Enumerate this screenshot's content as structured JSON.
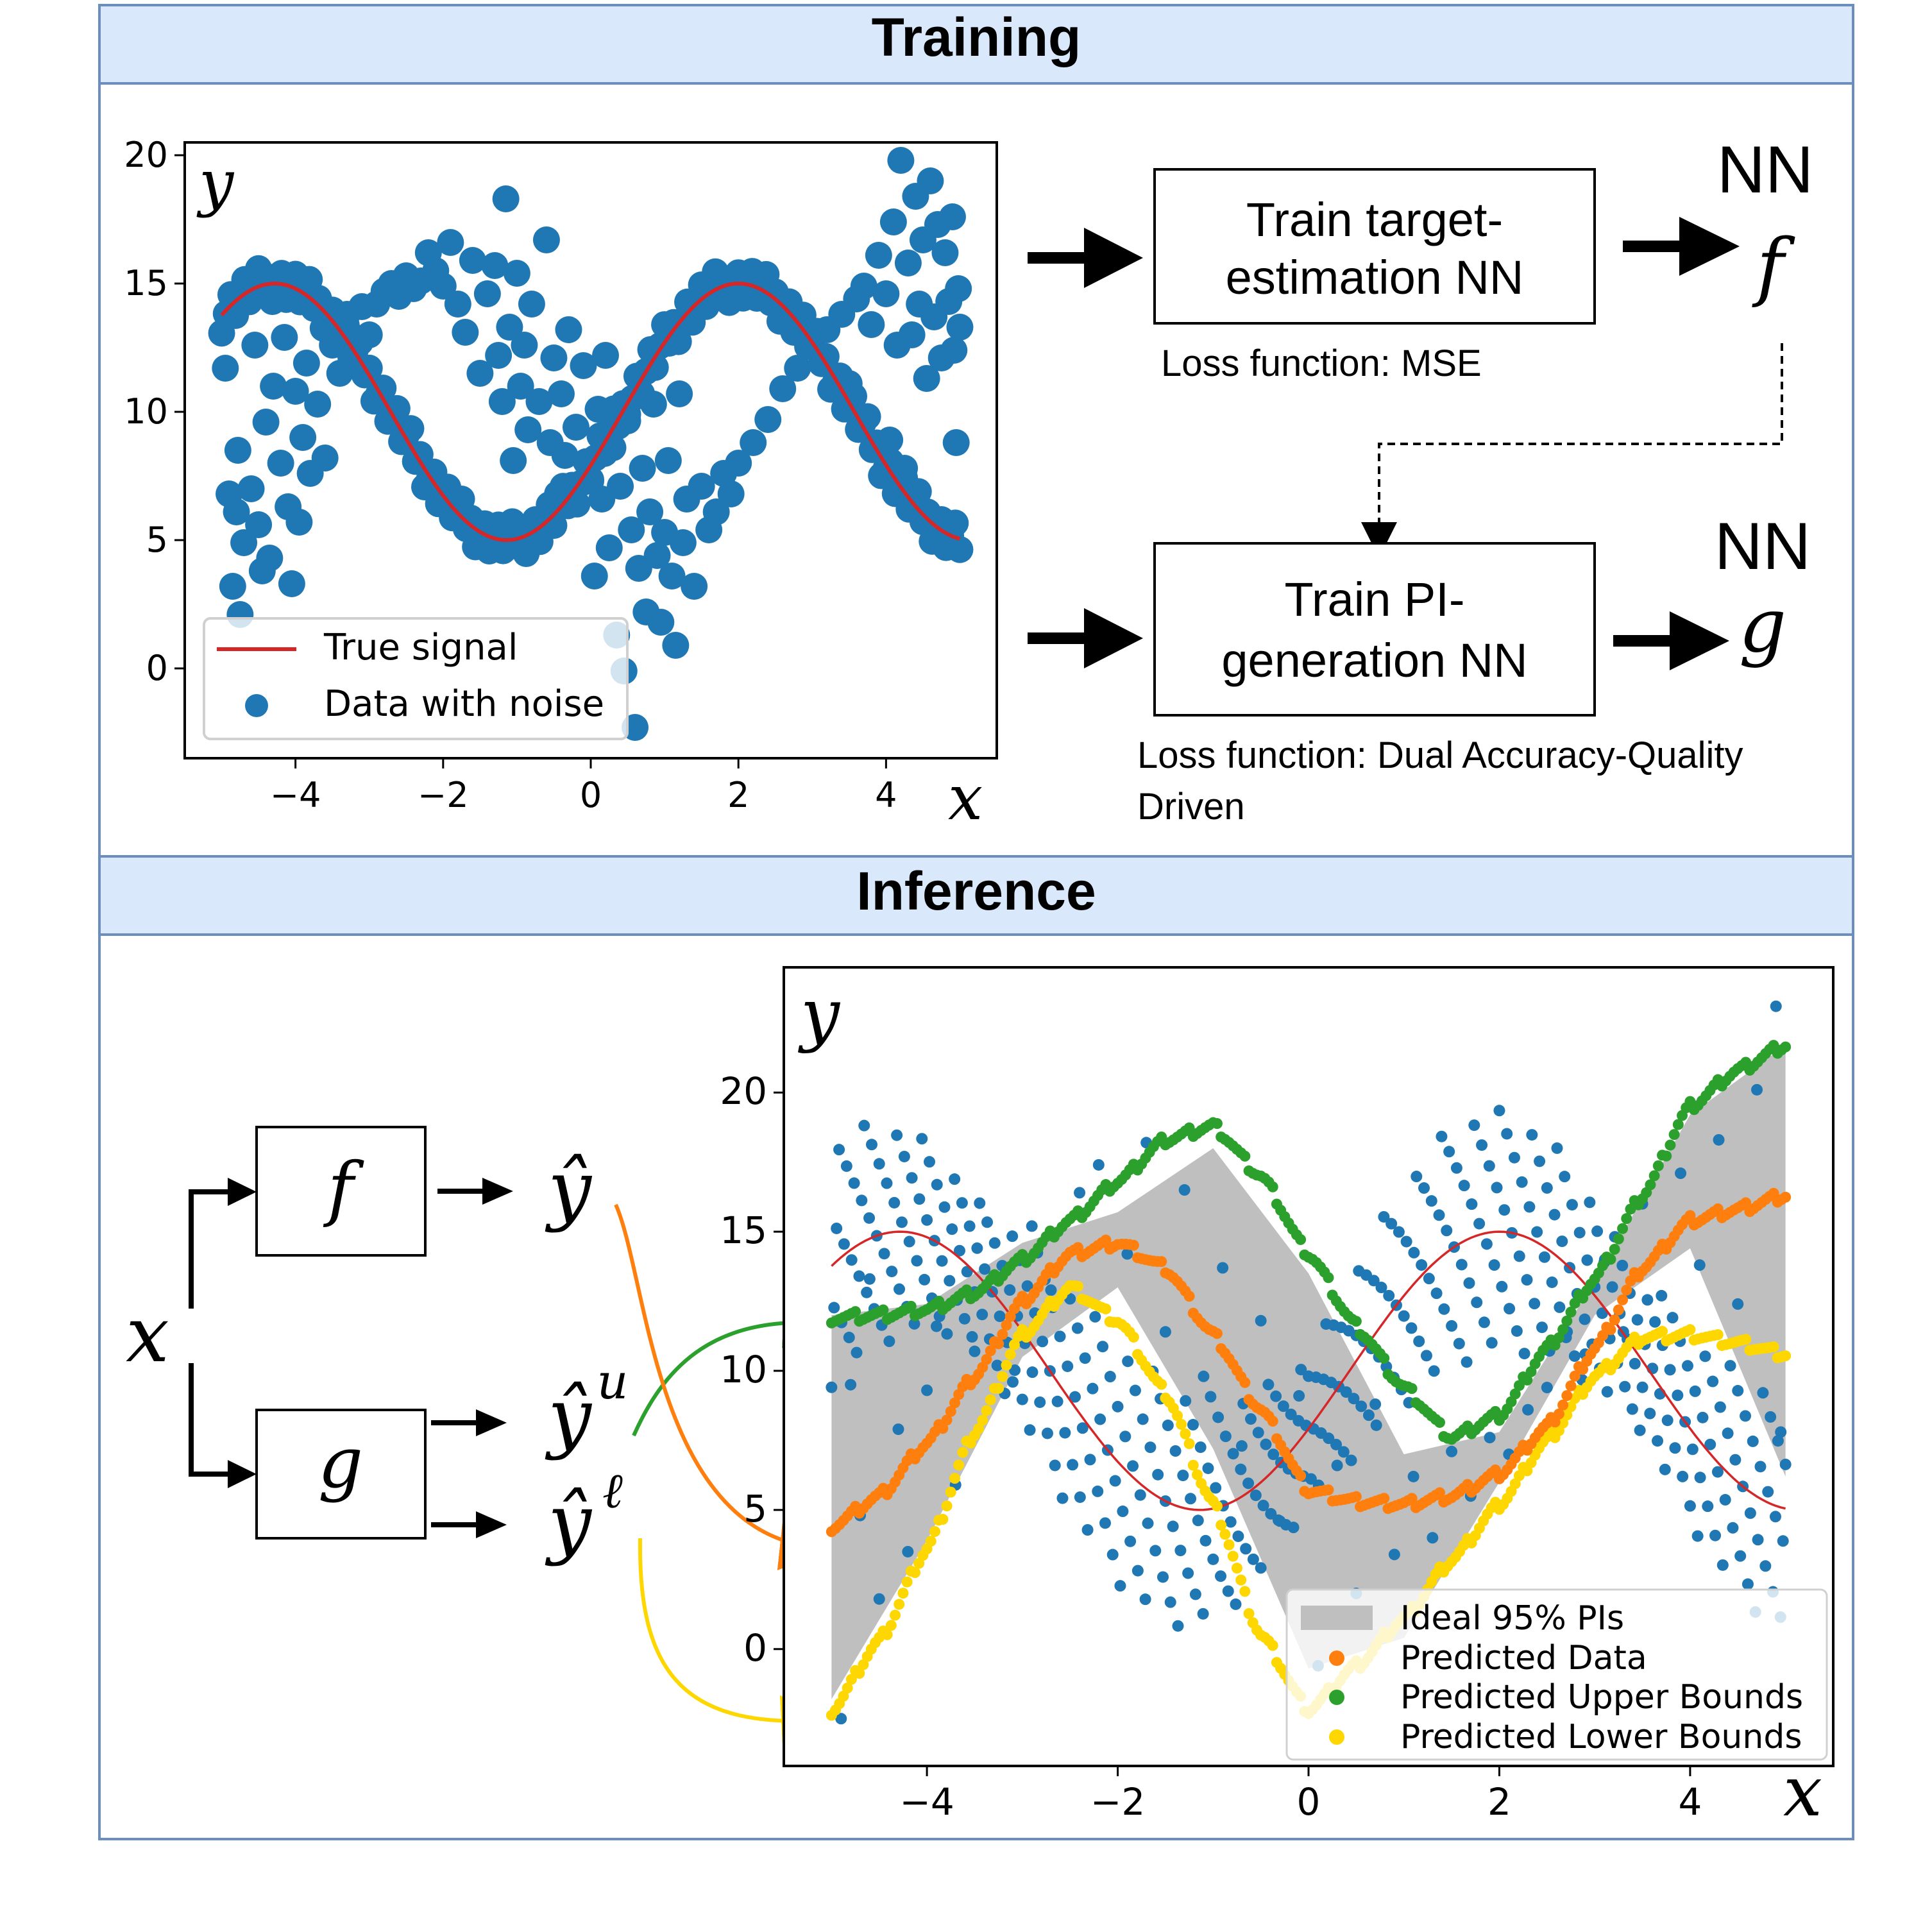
{
  "training": {
    "header": "Training",
    "box_f_label_line1": "Train target-",
    "box_f_label_line2": "estimation NN",
    "loss_f": "Loss function: MSE",
    "box_g_label_line1": "Train PI-",
    "box_g_label_line2": "generation NN",
    "loss_g_line1": "Loss function: Dual Accuracy-Quality",
    "loss_g_line2": "Driven",
    "nn_f_label": "NN",
    "nn_f_symbol": "f",
    "nn_g_label": "NN",
    "nn_g_symbol": "g"
  },
  "inference": {
    "header": "Inference",
    "input_symbol": "x",
    "box_f_symbol": "f",
    "box_g_symbol": "g",
    "out_hat": "ŷ",
    "out_upper_base": "ŷ",
    "out_upper_sup": "u",
    "out_lower_base": "ŷ",
    "out_lower_sup": "ℓ"
  },
  "colors": {
    "header_bg": "#dae8fc",
    "border": "#6c8ebf",
    "scatter": "#1f77b4",
    "true_signal": "#d62728",
    "predicted": "#ff7f0e",
    "upper": "#2ca02c",
    "lower": "#ffd700",
    "band": "#bfbfbf"
  },
  "chart_data": [
    {
      "id": "training",
      "type": "scatter",
      "title": "",
      "xlabel": "x",
      "ylabel": "y",
      "xlim": [
        -5.5,
        5.5
      ],
      "ylim": [
        -3.5,
        20.5
      ],
      "xticks": [
        -4,
        -2,
        0,
        2,
        4
      ],
      "xtick_labels": [
        "−4",
        "−2",
        "0",
        "2",
        "4"
      ],
      "yticks": [
        0,
        5,
        10,
        15,
        20
      ],
      "ytick_labels": [
        "0",
        "5",
        "10",
        "15",
        "20"
      ],
      "grid": false,
      "legend_position": "bottom-left",
      "series": [
        {
          "name": "True signal",
          "kind": "line",
          "function": "10 + 5*sin(x - 0.43) , x in [-5, 5]"
        },
        {
          "name": "Data with noise",
          "kind": "scatter",
          "points": [
            [
              -4.95,
              11.7
            ],
            [
              -4.9,
              6.8
            ],
            [
              -4.85,
              3.2
            ],
            [
              -4.8,
              6.1
            ],
            [
              -4.78,
              8.5
            ],
            [
              -4.75,
              2.1
            ],
            [
              -4.7,
              4.9
            ],
            [
              -4.6,
              7.0
            ],
            [
              -4.55,
              12.6
            ],
            [
              -4.5,
              5.6
            ],
            [
              -4.45,
              3.8
            ],
            [
              -4.4,
              9.6
            ],
            [
              -4.35,
              4.3
            ],
            [
              -4.3,
              11.0
            ],
            [
              -4.2,
              8.0
            ],
            [
              -4.15,
              12.9
            ],
            [
              -4.1,
              6.3
            ],
            [
              -4.05,
              3.3
            ],
            [
              -4.0,
              10.8
            ],
            [
              -3.95,
              5.7
            ],
            [
              -3.9,
              9.0
            ],
            [
              -3.85,
              11.9
            ],
            [
              -3.8,
              7.6
            ],
            [
              -3.7,
              10.3
            ],
            [
              -3.6,
              8.2
            ],
            [
              -3.5,
              12.6
            ],
            [
              -3.4,
              11.5
            ],
            [
              -3.3,
              13.8
            ],
            [
              -3.2,
              12.9
            ],
            [
              -3.1,
              14.1
            ],
            [
              -3.0,
              13.0
            ],
            [
              -2.9,
              14.2
            ],
            [
              -2.8,
              14.7
            ],
            [
              -2.7,
              15.0
            ],
            [
              -2.6,
              14.5
            ],
            [
              -2.5,
              15.3
            ],
            [
              -2.4,
              14.8
            ],
            [
              -2.3,
              15.1
            ],
            [
              -2.2,
              16.2
            ],
            [
              -2.1,
              15.5
            ],
            [
              -2.0,
              14.9
            ],
            [
              -1.9,
              16.6
            ],
            [
              -1.8,
              14.2
            ],
            [
              -1.7,
              13.1
            ],
            [
              -1.6,
              15.9
            ],
            [
              -1.5,
              11.5
            ],
            [
              -1.4,
              14.6
            ],
            [
              -1.3,
              15.7
            ],
            [
              -1.25,
              12.2
            ],
            [
              -1.2,
              10.4
            ],
            [
              -1.15,
              18.3
            ],
            [
              -1.1,
              13.3
            ],
            [
              -1.05,
              8.1
            ],
            [
              -1.0,
              15.4
            ],
            [
              -0.95,
              11.0
            ],
            [
              -0.9,
              12.6
            ],
            [
              -0.85,
              9.3
            ],
            [
              -0.8,
              14.2
            ],
            [
              -0.7,
              10.4
            ],
            [
              -0.6,
              16.7
            ],
            [
              -0.55,
              8.8
            ],
            [
              -0.5,
              12.1
            ],
            [
              -0.45,
              6.8
            ],
            [
              -0.4,
              10.7
            ],
            [
              -0.35,
              8.3
            ],
            [
              -0.3,
              13.2
            ],
            [
              -0.25,
              6.4
            ],
            [
              -0.2,
              9.4
            ],
            [
              -0.1,
              11.8
            ],
            [
              0.0,
              7.3
            ],
            [
              0.05,
              3.6
            ],
            [
              0.1,
              10.1
            ],
            [
              0.15,
              6.6
            ],
            [
              0.2,
              12.2
            ],
            [
              0.25,
              4.7
            ],
            [
              0.3,
              8.6
            ],
            [
              0.35,
              1.3
            ],
            [
              0.4,
              7.1
            ],
            [
              0.45,
              -0.1
            ],
            [
              0.5,
              9.9
            ],
            [
              0.55,
              5.4
            ],
            [
              0.6,
              -2.3
            ],
            [
              0.65,
              3.9
            ],
            [
              0.7,
              7.8
            ],
            [
              0.75,
              2.2
            ],
            [
              0.8,
              6.1
            ],
            [
              0.85,
              10.3
            ],
            [
              0.9,
              4.4
            ],
            [
              0.95,
              1.8
            ],
            [
              1.0,
              5.3
            ],
            [
              1.05,
              8.1
            ],
            [
              1.1,
              3.6
            ],
            [
              1.15,
              0.9
            ],
            [
              1.2,
              10.7
            ],
            [
              1.25,
              4.9
            ],
            [
              1.3,
              6.6
            ],
            [
              1.4,
              3.2
            ],
            [
              1.5,
              7.1
            ],
            [
              1.6,
              5.4
            ],
            [
              1.7,
              6.1
            ],
            [
              1.8,
              7.6
            ],
            [
              1.9,
              6.8
            ],
            [
              2.0,
              8.0
            ],
            [
              2.2,
              8.8
            ],
            [
              2.4,
              9.7
            ],
            [
              2.6,
              10.9
            ],
            [
              2.8,
              11.7
            ],
            [
              3.0,
              12.7
            ],
            [
              3.2,
              13.2
            ],
            [
              3.4,
              13.8
            ],
            [
              3.5,
              11.1
            ],
            [
              3.6,
              14.4
            ],
            [
              3.7,
              14.9
            ],
            [
              3.8,
              13.4
            ],
            [
              3.9,
              16.1
            ],
            [
              4.0,
              14.6
            ],
            [
              4.05,
              8.9
            ],
            [
              4.1,
              17.4
            ],
            [
              4.15,
              12.6
            ],
            [
              4.2,
              19.8
            ],
            [
              4.25,
              7.8
            ],
            [
              4.3,
              15.8
            ],
            [
              4.35,
              13.0
            ],
            [
              4.4,
              18.4
            ],
            [
              4.45,
              14.2
            ],
            [
              4.5,
              16.7
            ],
            [
              4.55,
              11.3
            ],
            [
              4.6,
              19.0
            ],
            [
              4.65,
              13.7
            ],
            [
              4.7,
              17.3
            ],
            [
              4.75,
              12.1
            ],
            [
              4.8,
              16.2
            ],
            [
              4.85,
              14.3
            ],
            [
              4.9,
              17.6
            ],
            [
              4.95,
              8.8
            ],
            [
              5.0,
              13.3
            ],
            [
              4.98,
              14.8
            ],
            [
              4.92,
              12.4
            ]
          ]
        }
      ]
    },
    {
      "id": "inference",
      "type": "scatter",
      "title": "",
      "xlabel": "x",
      "ylabel": "y",
      "xlim": [
        -5.5,
        5.5
      ],
      "ylim": [
        -4.2,
        24.5
      ],
      "xticks": [
        -4,
        -2,
        0,
        2,
        4
      ],
      "xtick_labels": [
        "−4",
        "−2",
        "0",
        "2",
        "4"
      ],
      "yticks": [
        0,
        5,
        10,
        15,
        20
      ],
      "ytick_labels": [
        "0",
        "5",
        "10",
        "15",
        "20"
      ],
      "grid": false,
      "legend_position": "bottom-right",
      "series": [
        {
          "name": "Ideal 95% PIs",
          "kind": "band",
          "x": [
            -5,
            -4,
            -3,
            -2,
            -1,
            0,
            1,
            2,
            3,
            4,
            5
          ],
          "lower": [
            -1.8,
            3.9,
            10.5,
            13.0,
            7.2,
            -0.7,
            0.4,
            6.0,
            12.0,
            14.4,
            6.2
          ],
          "upper": [
            12.0,
            12.4,
            14.6,
            15.7,
            18.0,
            13.5,
            7.0,
            7.8,
            13.2,
            19.2,
            21.7
          ]
        },
        {
          "name": "Predicted Data",
          "kind": "curve",
          "x": [
            -5,
            -4.5,
            -4,
            -3.5,
            -3,
            -2.5,
            -2,
            -1.5,
            -1,
            -0.5,
            0,
            0.5,
            1,
            1.5,
            2,
            2.5,
            3,
            3.5,
            4,
            4.5,
            5
          ],
          "y": [
            4.4,
            5.5,
            7.4,
            9.8,
            12.5,
            14.2,
            14.6,
            13.7,
            11.3,
            8.6,
            5.7,
            5.3,
            5.2,
            5.5,
            6.3,
            8.0,
            10.8,
            13.7,
            15.4,
            15.8,
            16.3
          ]
        },
        {
          "name": "Predicted Upper Bounds",
          "kind": "curve",
          "x": [
            -5,
            -4.5,
            -4,
            -3.5,
            -3,
            -2.5,
            -2,
            -1.5,
            -1,
            -0.5,
            0,
            0.5,
            1,
            1.5,
            2,
            2.5,
            3,
            3.5,
            4,
            4.5,
            5
          ],
          "y": [
            11.9,
            12.0,
            12.2,
            12.8,
            14.0,
            15.4,
            16.8,
            18.3,
            18.8,
            17.0,
            14.2,
            11.6,
            9.4,
            7.6,
            8.4,
            10.8,
            13.3,
            16.3,
            19.5,
            20.8,
            21.7
          ]
        },
        {
          "name": "Predicted Lower Bounds",
          "kind": "curve",
          "x": [
            -5,
            -4.5,
            -4,
            -3.5,
            -3,
            -2.5,
            -2,
            -1.5,
            -1,
            -0.5,
            0,
            0.5,
            1,
            1.5,
            2,
            2.5,
            3,
            3.5,
            4,
            4.5,
            5
          ],
          "y": [
            -2.2,
            0.3,
            3.6,
            7.8,
            11.3,
            13.0,
            11.8,
            9.2,
            5.2,
            0.5,
            -2.2,
            -0.6,
            1.1,
            3.2,
            5.2,
            7.5,
            9.8,
            11.2,
            11.3,
            11.0,
            10.6
          ]
        },
        {
          "name": "True signal",
          "kind": "curve",
          "function": "10 + 5*sin(x - 0.43)"
        },
        {
          "name": "Data",
          "kind": "scatter",
          "points": [
            [
              -4.9,
              -2.5
            ],
            [
              -4.6,
              13.3
            ],
            [
              -4.8,
              9.5
            ],
            [
              -4.7,
              4.8
            ],
            [
              -4.5,
              1.8
            ],
            [
              -4.3,
              7.9
            ],
            [
              -4.2,
              3.5
            ],
            [
              -4.0,
              9.3
            ],
            [
              -3.9,
              11.6
            ],
            [
              -3.7,
              5.9
            ],
            [
              -3.5,
              10.7
            ],
            [
              -3.3,
              13.4
            ],
            [
              -3.1,
              9.6
            ],
            [
              -2.9,
              15.2
            ],
            [
              -2.7,
              12.9
            ],
            [
              -2.4,
              16.4
            ],
            [
              -2.2,
              17.4
            ],
            [
              -1.9,
              14.2
            ],
            [
              -1.7,
              18.2
            ],
            [
              -1.5,
              11.4
            ],
            [
              -1.3,
              16.5
            ],
            [
              -1.1,
              9.8
            ],
            [
              -0.9,
              13.7
            ],
            [
              -0.7,
              7.3
            ],
            [
              -0.5,
              11.8
            ],
            [
              -0.3,
              4.6
            ],
            [
              -0.1,
              9.1
            ],
            [
              0.1,
              -0.6
            ],
            [
              0.3,
              6.6
            ],
            [
              0.5,
              2.0
            ],
            [
              0.7,
              8.8
            ],
            [
              0.9,
              3.4
            ],
            [
              1.1,
              6.2
            ],
            [
              1.3,
              4.0
            ],
            [
              1.5,
              7.1
            ],
            [
              1.7,
              5.5
            ],
            [
              1.9,
              7.6
            ],
            [
              2.1,
              7.0
            ],
            [
              2.3,
              8.6
            ],
            [
              2.5,
              9.4
            ],
            [
              2.7,
              11.2
            ],
            [
              2.9,
              10.6
            ],
            [
              3.1,
              13.9
            ],
            [
              3.3,
              11.4
            ],
            [
              3.5,
              16.0
            ],
            [
              3.7,
              12.7
            ],
            [
              3.9,
              17.1
            ],
            [
              4.1,
              13.8
            ],
            [
              4.3,
              18.3
            ],
            [
              4.5,
              12.4
            ],
            [
              4.7,
              20.1
            ],
            [
              4.9,
              23.1
            ],
            [
              4.95,
              7.8
            ]
          ]
        }
      ]
    }
  ]
}
